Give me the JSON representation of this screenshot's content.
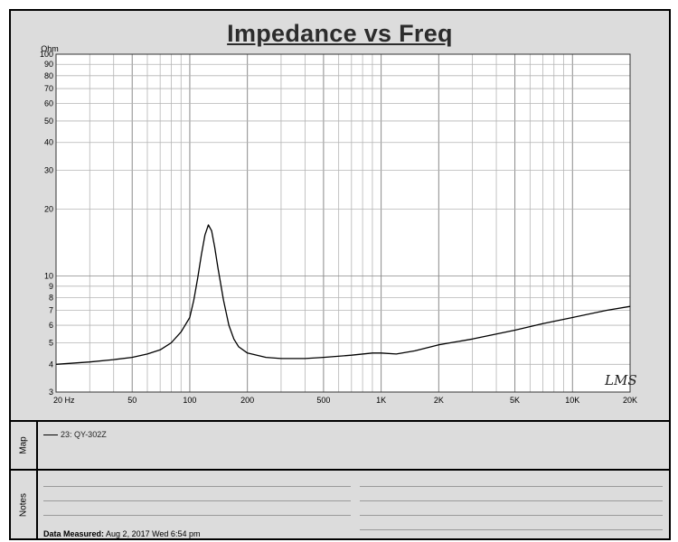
{
  "title": "Impedance vs Freq",
  "y_unit": "Ohm",
  "watermark": "LMS",
  "map": {
    "label": "Map",
    "legend_entry": "23: QY-302Z"
  },
  "notes": {
    "label": "Notes",
    "measured_prefix": "Data Measured:",
    "measured_value": "Aug  2, 2017  Wed  6:54 pm"
  },
  "chart_data": {
    "type": "line",
    "title": "Impedance vs Freq",
    "xlabel": "",
    "ylabel": "Ohm",
    "xscale": "log",
    "yscale": "log",
    "xlim": [
      20,
      20000
    ],
    "ylim": [
      3,
      100
    ],
    "grid": true,
    "x_ticks": [
      {
        "v": 20,
        "label": "20  Hz"
      },
      {
        "v": 50,
        "label": "50"
      },
      {
        "v": 100,
        "label": "100"
      },
      {
        "v": 200,
        "label": "200"
      },
      {
        "v": 500,
        "label": "500"
      },
      {
        "v": 1000,
        "label": "1K"
      },
      {
        "v": 2000,
        "label": "2K"
      },
      {
        "v": 5000,
        "label": "5K"
      },
      {
        "v": 10000,
        "label": "10K"
      },
      {
        "v": 20000,
        "label": "20K"
      }
    ],
    "y_ticks": [
      3,
      4,
      5,
      6,
      7,
      8,
      9,
      10,
      20,
      30,
      40,
      50,
      60,
      70,
      80,
      90,
      100
    ],
    "series": [
      {
        "name": "23: QY-302Z",
        "color": "#000000",
        "x": [
          20,
          30,
          40,
          50,
          60,
          70,
          80,
          90,
          100,
          105,
          110,
          115,
          120,
          125,
          130,
          135,
          140,
          150,
          160,
          170,
          180,
          200,
          250,
          300,
          400,
          500,
          700,
          900,
          1000,
          1200,
          1500,
          2000,
          3000,
          5000,
          7000,
          10000,
          15000,
          20000
        ],
        "y": [
          4.0,
          4.1,
          4.2,
          4.3,
          4.45,
          4.65,
          5.0,
          5.6,
          6.5,
          7.8,
          9.8,
          12.5,
          15.3,
          17.0,
          16.0,
          13.5,
          11.0,
          7.8,
          6.0,
          5.2,
          4.8,
          4.5,
          4.3,
          4.25,
          4.25,
          4.3,
          4.4,
          4.5,
          4.5,
          4.45,
          4.6,
          4.9,
          5.2,
          5.7,
          6.1,
          6.5,
          7.0,
          7.3
        ]
      }
    ]
  }
}
